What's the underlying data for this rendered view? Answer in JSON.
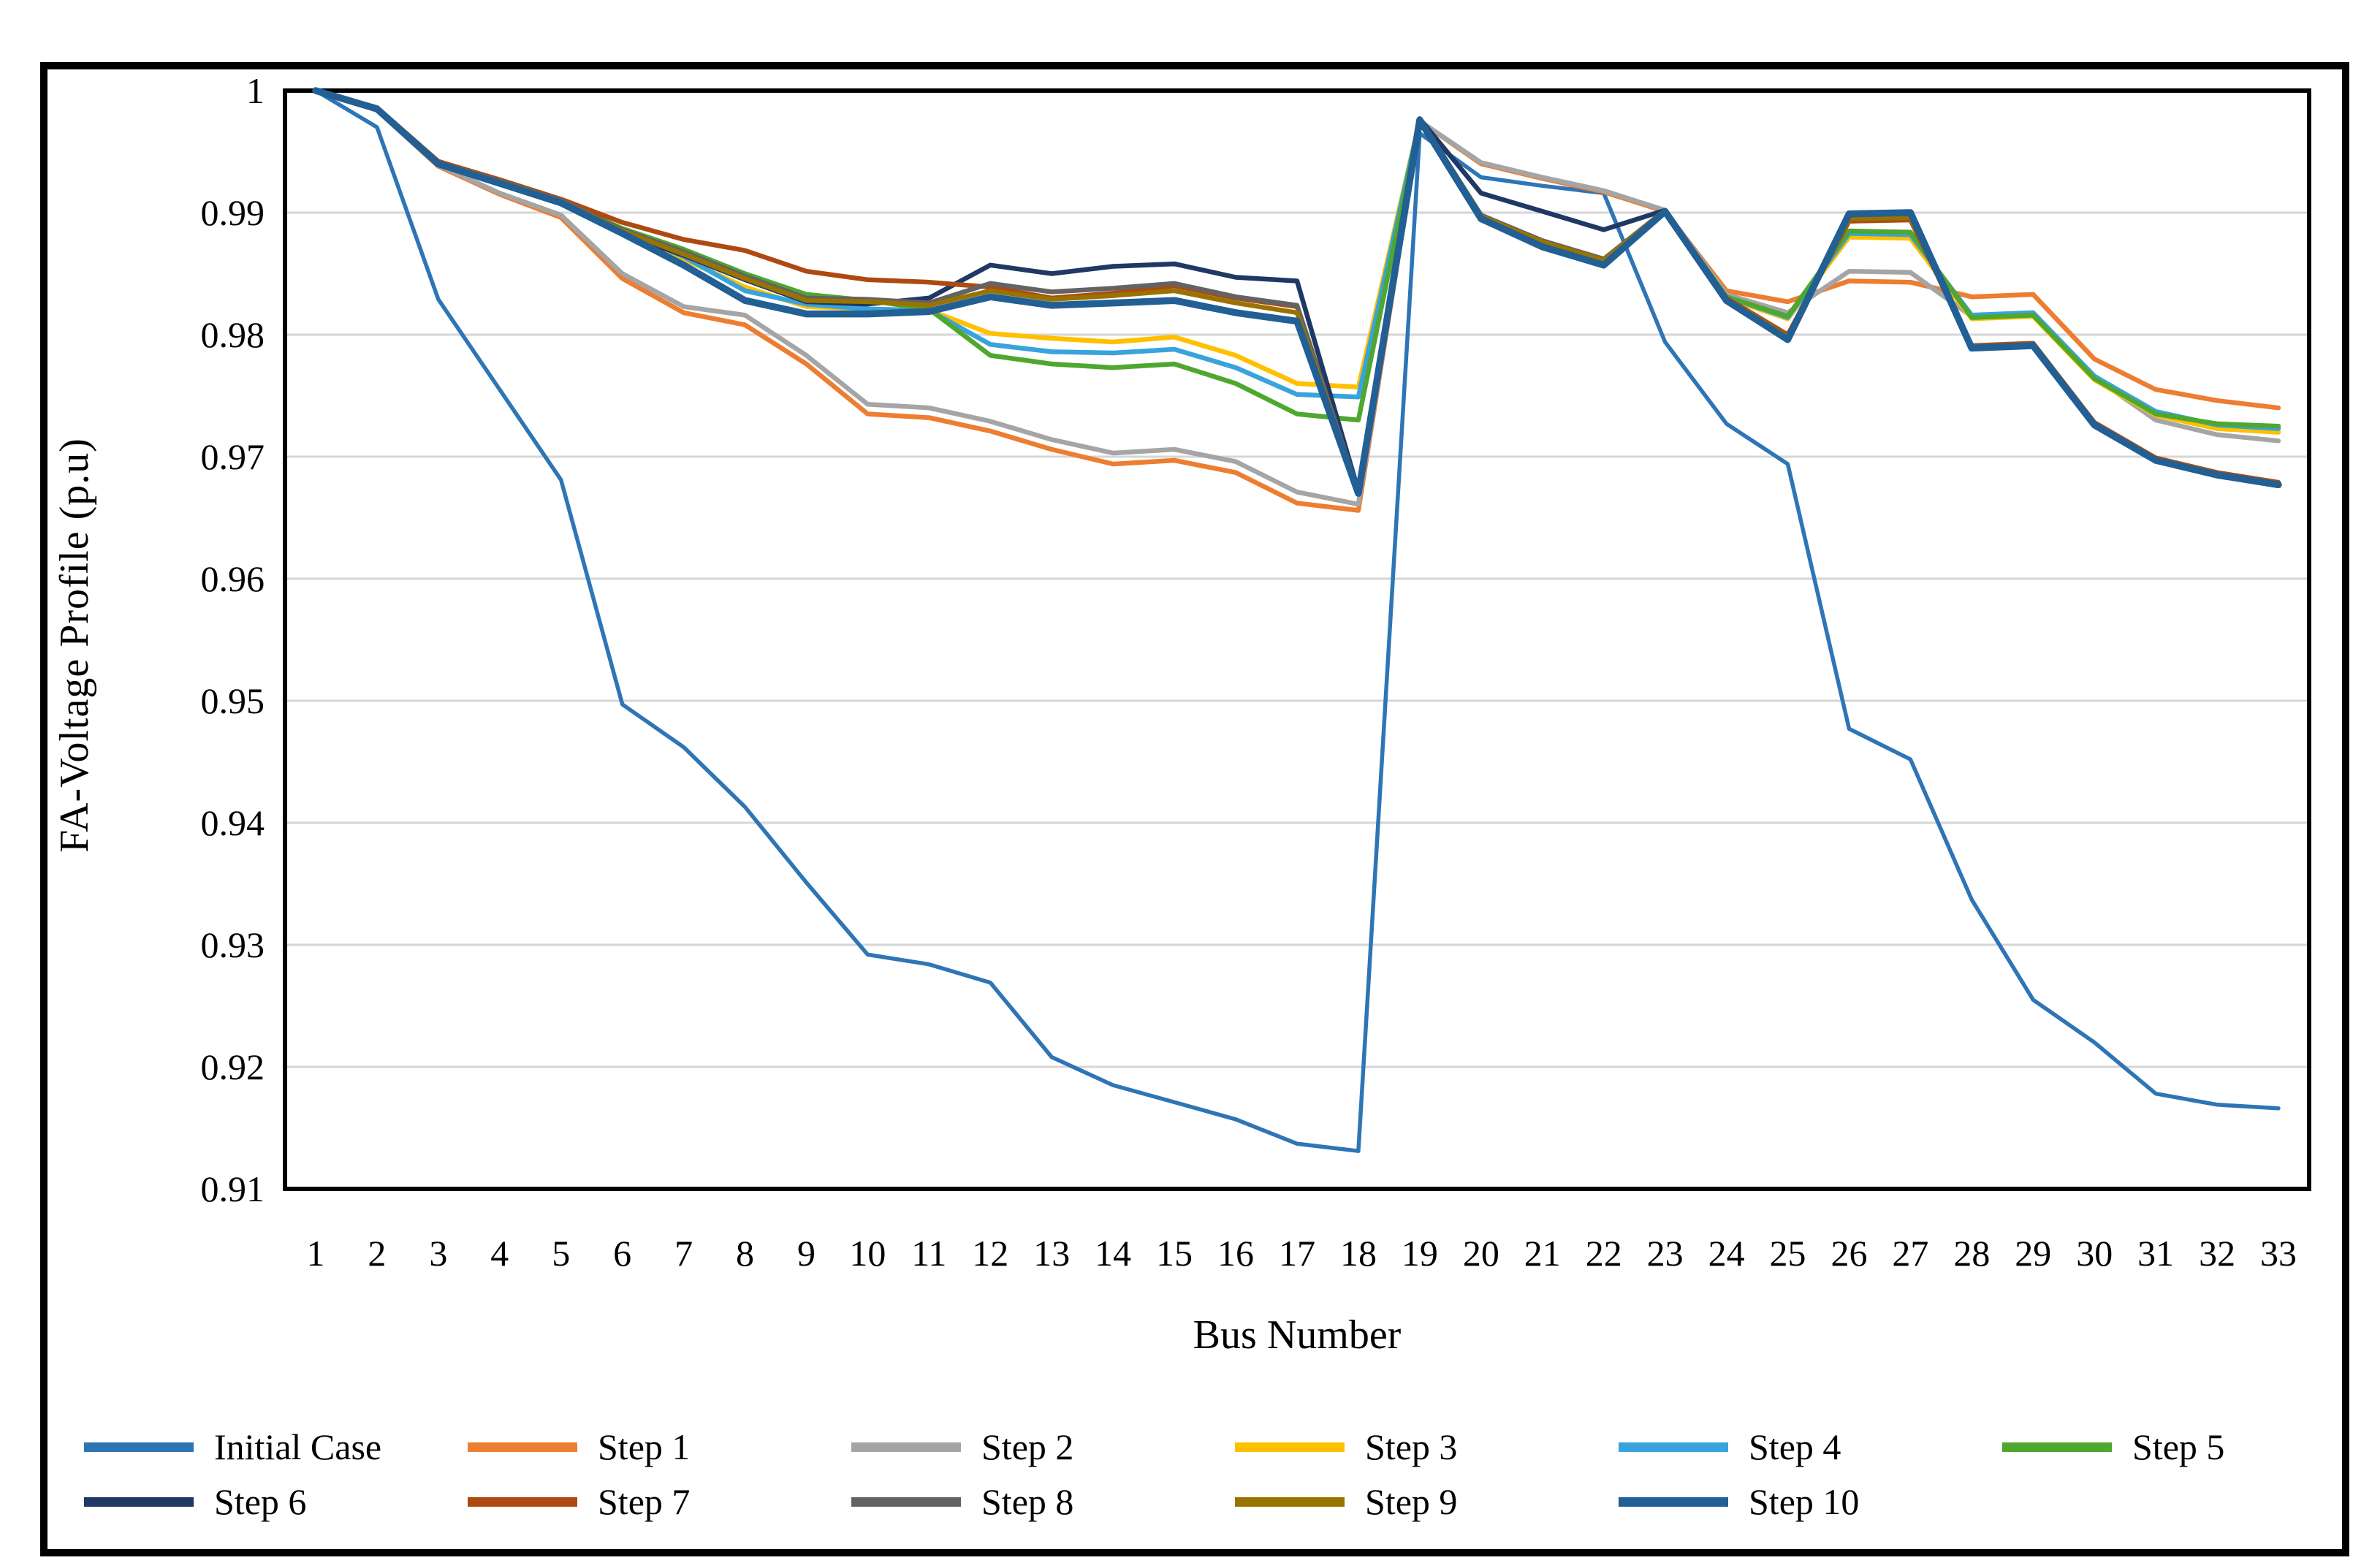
{
  "figure": {
    "background": "#ffffff",
    "border_color": "#000000"
  },
  "chart_data": {
    "type": "line",
    "title": "",
    "xlabel": "Bus Number",
    "ylabel": "FA-Voltage Profile (p.u)",
    "x_tick_labels": [
      "1",
      "2",
      "3",
      "4",
      "5",
      "6",
      "7",
      "8",
      "9",
      "10",
      "11",
      "12",
      "13",
      "14",
      "15",
      "16",
      "17",
      "18",
      "19",
      "20",
      "21",
      "22",
      "23",
      "24",
      "25",
      "26",
      "27",
      "28",
      "29",
      "30",
      "31",
      "32",
      "33"
    ],
    "ylim": [
      0.91,
      1.0
    ],
    "yticks": [
      {
        "value": 1.0,
        "label": "1"
      },
      {
        "value": 0.99,
        "label": "0.99"
      },
      {
        "value": 0.98,
        "label": "0.98"
      },
      {
        "value": 0.97,
        "label": "0.97"
      },
      {
        "value": 0.96,
        "label": "0.96"
      },
      {
        "value": 0.95,
        "label": "0.95"
      },
      {
        "value": 0.94,
        "label": "0.94"
      },
      {
        "value": 0.93,
        "label": "0.93"
      },
      {
        "value": 0.92,
        "label": "0.92"
      },
      {
        "value": 0.91,
        "label": "0.91"
      }
    ],
    "grid": "horizontal",
    "gridline_color": "#d6d6d6",
    "legend_position": "bottom",
    "series": [
      {
        "name": "Initial Case",
        "color": "#2E75B6",
        "values": [
          1.0,
          0.997,
          0.9829,
          0.9755,
          0.9681,
          0.9497,
          0.9462,
          0.9413,
          0.9351,
          0.9292,
          0.9284,
          0.9269,
          0.9208,
          0.9185,
          0.9171,
          0.9157,
          0.9137,
          0.9131,
          0.9965,
          0.9929,
          0.9922,
          0.9916,
          0.9794,
          0.9727,
          0.9694,
          0.9477,
          0.9452,
          0.9337,
          0.9255,
          0.922,
          0.9178,
          0.9169,
          0.9166
        ]
      },
      {
        "name": "Step 1",
        "color": "#ED7D31",
        "values": [
          1.0,
          0.9984,
          0.9938,
          0.9915,
          0.9896,
          0.9846,
          0.9818,
          0.9808,
          0.9776,
          0.9735,
          0.9732,
          0.9721,
          0.9706,
          0.9694,
          0.9697,
          0.9687,
          0.9662,
          0.9656,
          0.9975,
          0.994,
          0.9928,
          0.9917,
          0.9901,
          0.9836,
          0.9827,
          0.9844,
          0.9843,
          0.9831,
          0.9833,
          0.978,
          0.9755,
          0.9746,
          0.974
        ]
      },
      {
        "name": "Step 2",
        "color": "#A5A5A5",
        "values": [
          1.0,
          0.9984,
          0.9939,
          0.9916,
          0.9898,
          0.985,
          0.9823,
          0.9816,
          0.9783,
          0.9743,
          0.974,
          0.9729,
          0.9714,
          0.9703,
          0.9706,
          0.9696,
          0.9671,
          0.9661,
          0.9975,
          0.9941,
          0.9929,
          0.9918,
          0.9902,
          0.9833,
          0.9818,
          0.9852,
          0.9851,
          0.9815,
          0.9817,
          0.9765,
          0.973,
          0.9718,
          0.9713
        ]
      },
      {
        "name": "Step 3",
        "color": "#FFC000",
        "values": [
          1.0,
          0.9985,
          0.9941,
          0.9925,
          0.9909,
          0.9884,
          0.9862,
          0.9839,
          0.9823,
          0.9821,
          0.982,
          0.9801,
          0.9797,
          0.9794,
          0.9798,
          0.9783,
          0.976,
          0.9757,
          0.9976,
          0.9897,
          0.9875,
          0.986,
          0.9901,
          0.983,
          0.9813,
          0.988,
          0.9879,
          0.9813,
          0.9815,
          0.9763,
          0.9734,
          0.9723,
          0.972
        ]
      },
      {
        "name": "Step 4",
        "color": "#38A3DC",
        "values": [
          1.0,
          0.9985,
          0.9941,
          0.9924,
          0.9908,
          0.9885,
          0.9864,
          0.9836,
          0.9825,
          0.9821,
          0.982,
          0.9792,
          0.9786,
          0.9785,
          0.9788,
          0.9773,
          0.9751,
          0.9749,
          0.9976,
          0.9896,
          0.9874,
          0.9859,
          0.9901,
          0.9831,
          0.9814,
          0.9883,
          0.9882,
          0.9816,
          0.9818,
          0.9766,
          0.9737,
          0.9726,
          0.9723
        ]
      },
      {
        "name": "Step 5",
        "color": "#4EA72E",
        "values": [
          1.0,
          0.9985,
          0.9941,
          0.9925,
          0.9909,
          0.9887,
          0.987,
          0.985,
          0.9833,
          0.9828,
          0.9821,
          0.9783,
          0.9776,
          0.9773,
          0.9776,
          0.976,
          0.9735,
          0.973,
          0.9976,
          0.9895,
          0.9873,
          0.9858,
          0.9901,
          0.9831,
          0.9815,
          0.9885,
          0.9884,
          0.9814,
          0.9816,
          0.9764,
          0.9735,
          0.9727,
          0.9725
        ]
      },
      {
        "name": "Step 6",
        "color": "#1F3864",
        "values": [
          1.0,
          0.9986,
          0.9942,
          0.9926,
          0.991,
          0.9883,
          0.9865,
          0.9845,
          0.9827,
          0.9825,
          0.983,
          0.9857,
          0.985,
          0.9856,
          0.9858,
          0.9847,
          0.9844,
          0.9672,
          0.9977,
          0.9916,
          0.9901,
          0.9886,
          0.9902,
          0.9829,
          0.9797,
          0.9897,
          0.9898,
          0.979,
          0.9792,
          0.9727,
          0.9698,
          0.9686,
          0.9678
        ]
      },
      {
        "name": "Step 7",
        "color": "#AE4A11",
        "values": [
          1.0,
          0.9986,
          0.9942,
          0.9927,
          0.9911,
          0.9892,
          0.9878,
          0.9869,
          0.9852,
          0.9845,
          0.9843,
          0.9839,
          0.983,
          0.9834,
          0.984,
          0.983,
          0.9823,
          0.9671,
          0.9977,
          0.9897,
          0.9876,
          0.9861,
          0.9902,
          0.983,
          0.98,
          0.9893,
          0.9894,
          0.9791,
          0.9793,
          0.9728,
          0.9699,
          0.9687,
          0.9679
        ]
      },
      {
        "name": "Step 8",
        "color": "#636363",
        "values": [
          1.0,
          0.9986,
          0.9941,
          0.9926,
          0.991,
          0.9886,
          0.9868,
          0.9848,
          0.983,
          0.9829,
          0.9826,
          0.9842,
          0.9835,
          0.9838,
          0.9842,
          0.9831,
          0.9824,
          0.9671,
          0.9977,
          0.9898,
          0.9877,
          0.9862,
          0.9902,
          0.9829,
          0.9798,
          0.9896,
          0.9897,
          0.979,
          0.9792,
          0.9727,
          0.9698,
          0.9686,
          0.9678
        ]
      },
      {
        "name": "Step 9",
        "color": "#997300",
        "values": [
          1.0,
          0.9986,
          0.9941,
          0.9925,
          0.9909,
          0.9885,
          0.9866,
          0.9846,
          0.9828,
          0.9827,
          0.9824,
          0.9836,
          0.9829,
          0.9832,
          0.9836,
          0.9826,
          0.9818,
          0.9671,
          0.9977,
          0.9897,
          0.9876,
          0.9861,
          0.9902,
          0.9829,
          0.9798,
          0.9895,
          0.9896,
          0.979,
          0.9792,
          0.9727,
          0.9698,
          0.9686,
          0.9678
        ]
      },
      {
        "name": "Step 10",
        "color": "#215F94",
        "values": [
          1.0,
          0.9985,
          0.994,
          0.9924,
          0.9908,
          0.9883,
          0.9857,
          0.9828,
          0.9817,
          0.9817,
          0.9819,
          0.9831,
          0.9824,
          0.9826,
          0.9828,
          0.9818,
          0.9811,
          0.967,
          0.9976,
          0.9895,
          0.9872,
          0.9857,
          0.9901,
          0.9828,
          0.9796,
          0.9899,
          0.99,
          0.9789,
          0.9791,
          0.9726,
          0.9697,
          0.9685,
          0.9677
        ]
      }
    ]
  }
}
